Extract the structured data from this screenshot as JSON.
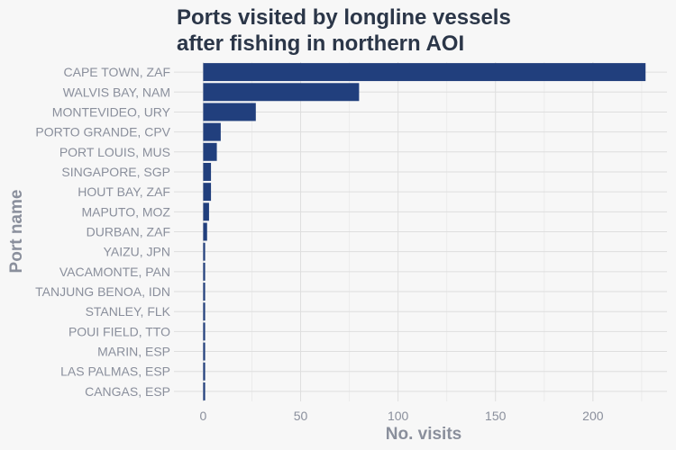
{
  "chart_data": {
    "type": "bar",
    "orientation": "horizontal",
    "title_lines": [
      "Ports visited by longline vessels",
      "after fishing in northern AOI"
    ],
    "xlabel": "No. visits",
    "ylabel": "Port name",
    "categories": [
      "CAPE TOWN, ZAF",
      "WALVIS BAY, NAM",
      "MONTEVIDEO, URY",
      "PORTO GRANDE, CPV",
      "PORT LOUIS, MUS",
      "SINGAPORE, SGP",
      "HOUT BAY, ZAF",
      "MAPUTO, MOZ",
      "DURBAN, ZAF",
      "YAIZU, JPN",
      "VACAMONTE, PAN",
      "TANJUNG BENOA, IDN",
      "STANLEY, FLK",
      "POUI FIELD, TTO",
      "MARIN, ESP",
      "LAS PALMAS, ESP",
      "CANGAS, ESP"
    ],
    "values": [
      227,
      80,
      27,
      9,
      7,
      4,
      4,
      3,
      2,
      1,
      1,
      1,
      1,
      1,
      1,
      1,
      1
    ],
    "xlim": [
      -15,
      238
    ],
    "xticks": [
      0,
      50,
      100,
      150,
      200
    ],
    "grid": true,
    "bar_color": "#213f7d"
  }
}
